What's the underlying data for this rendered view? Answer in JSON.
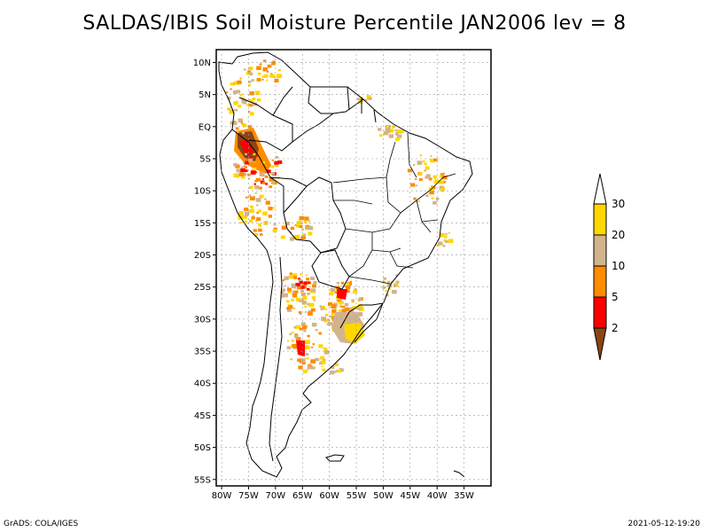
{
  "title": "SALDAS/IBIS Soil Moisture Percentile JAN2006 lev = 8",
  "footer": {
    "left": "GrADS: COLA/IGES",
    "right": "2021-05-12-19:20"
  },
  "map": {
    "lon_range": [
      -81,
      -30
    ],
    "lat_range": [
      -56,
      12
    ],
    "lat_ticks": [
      {
        "lat": 10,
        "label": "10N"
      },
      {
        "lat": 5,
        "label": "5N"
      },
      {
        "lat": 0,
        "label": "EQ"
      },
      {
        "lat": -5,
        "label": "5S"
      },
      {
        "lat": -10,
        "label": "10S"
      },
      {
        "lat": -15,
        "label": "15S"
      },
      {
        "lat": -20,
        "label": "20S"
      },
      {
        "lat": -25,
        "label": "25S"
      },
      {
        "lat": -30,
        "label": "30S"
      },
      {
        "lat": -35,
        "label": "35S"
      },
      {
        "lat": -40,
        "label": "40S"
      },
      {
        "lat": -45,
        "label": "45S"
      },
      {
        "lat": -50,
        "label": "50S"
      },
      {
        "lat": -55,
        "label": "55S"
      }
    ],
    "lon_ticks": [
      {
        "lon": -80,
        "label": "80W"
      },
      {
        "lon": -75,
        "label": "75W"
      },
      {
        "lon": -70,
        "label": "70W"
      },
      {
        "lon": -65,
        "label": "65W"
      },
      {
        "lon": -60,
        "label": "60W"
      },
      {
        "lon": -55,
        "label": "55W"
      },
      {
        "lon": -50,
        "label": "50W"
      },
      {
        "lon": -45,
        "label": "45W"
      },
      {
        "lon": -40,
        "label": "40W"
      },
      {
        "lon": -35,
        "label": "35W"
      }
    ]
  },
  "legend": {
    "colors": {
      "below_2": "#8b4513",
      "2_5": "#ff0000",
      "5_10": "#ff8c00",
      "10_20": "#d2b48c",
      "20_30": "#ffd700",
      "above_30": "#ffffff"
    },
    "labels": [
      "2",
      "5",
      "10",
      "20",
      "30"
    ]
  }
}
